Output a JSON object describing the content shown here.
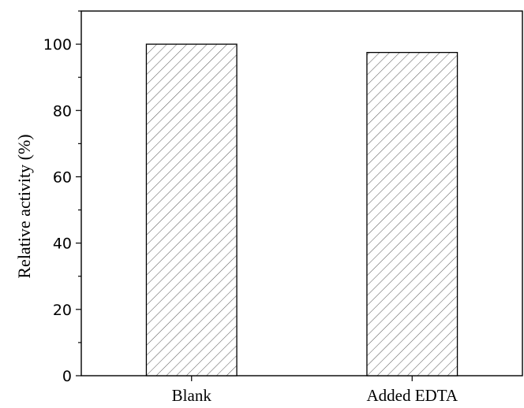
{
  "chart_data": {
    "type": "bar",
    "categories": [
      "Blank",
      "Added EDTA"
    ],
    "values": [
      100,
      97.5
    ],
    "ylabel": "Relative activity (%)",
    "xlabel": "",
    "ylim": [
      0,
      110
    ],
    "yticks": [
      0,
      20,
      40,
      60,
      80,
      100
    ],
    "grid": false,
    "bar_fill": "hatched",
    "colors": {
      "bar_fill": "#ffffff",
      "hatch": "#555555",
      "axis": "#000000"
    }
  }
}
